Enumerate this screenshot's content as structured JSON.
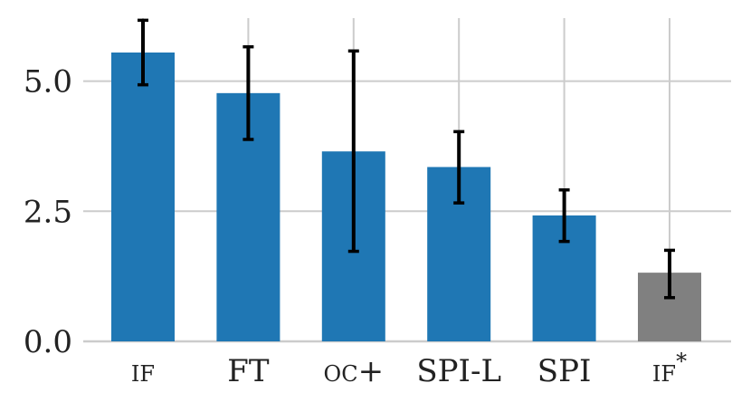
{
  "chart_data": {
    "type": "bar",
    "title": "",
    "xlabel": "",
    "ylabel": "",
    "categories": [
      "IF",
      "FT",
      "OC+",
      "SPI-L",
      "SPI",
      "IF*"
    ],
    "category_labels": [
      {
        "main": "IF",
        "sc": true,
        "sup": ""
      },
      {
        "main": "FT",
        "sc": false,
        "sup": ""
      },
      {
        "main": "OC+",
        "sc": true,
        "sup": ""
      },
      {
        "main": "SPI-L",
        "sc": false,
        "sup": ""
      },
      {
        "main": "SPI",
        "sc": false,
        "sup": ""
      },
      {
        "main": "IF",
        "sc": true,
        "sup": "*"
      }
    ],
    "values": [
      5.55,
      4.77,
      3.65,
      3.35,
      2.42,
      1.32
    ],
    "error_low": [
      4.93,
      3.88,
      1.73,
      2.66,
      1.92,
      0.84
    ],
    "error_high": [
      6.17,
      5.66,
      5.58,
      4.03,
      2.91,
      1.75
    ],
    "bar_colors": [
      "#1f77b4",
      "#1f77b4",
      "#1f77b4",
      "#1f77b4",
      "#1f77b4",
      "#808080"
    ],
    "error_color": "#000000",
    "yticks": [
      0.0,
      2.5,
      5.0
    ],
    "ytick_labels": [
      "0.0",
      "2.5",
      "5.0"
    ],
    "ylim": [
      0,
      6.42
    ],
    "grid": true
  }
}
